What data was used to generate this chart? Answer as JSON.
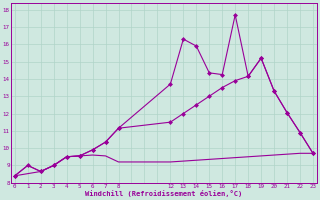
{
  "background_color": "#cfe8e0",
  "grid_color": "#b0d4c8",
  "line_color": "#990099",
  "xlabel": "Windchill (Refroidissement éolien,°C)",
  "ylim": [
    8,
    18.4
  ],
  "xlim": [
    -0.3,
    23.3
  ],
  "yticks": [
    8,
    9,
    10,
    11,
    12,
    13,
    14,
    15,
    16,
    17,
    18
  ],
  "xticks": [
    0,
    1,
    2,
    3,
    4,
    5,
    6,
    7,
    8,
    12,
    13,
    14,
    15,
    16,
    17,
    18,
    19,
    20,
    21,
    22,
    23
  ],
  "s1_x": [
    0,
    1,
    2,
    3,
    4,
    5,
    6,
    7,
    8,
    12,
    13,
    14,
    15,
    16,
    17,
    18,
    19,
    20,
    21,
    22,
    23
  ],
  "s1_y": [
    8.4,
    9.0,
    8.65,
    9.0,
    9.5,
    9.55,
    9.6,
    9.55,
    9.2,
    9.2,
    9.25,
    9.3,
    9.35,
    9.4,
    9.45,
    9.5,
    9.55,
    9.6,
    9.65,
    9.7,
    9.7
  ],
  "s2_x": [
    0,
    1,
    2,
    3,
    4,
    5,
    6,
    7,
    8,
    12,
    13,
    14,
    15,
    16,
    17,
    18,
    19,
    20,
    21,
    22,
    23
  ],
  "s2_y": [
    8.4,
    9.0,
    8.65,
    9.0,
    9.5,
    9.55,
    9.9,
    10.35,
    11.15,
    13.7,
    16.3,
    15.9,
    14.35,
    14.25,
    17.7,
    14.15,
    15.2,
    13.3,
    12.05,
    10.9,
    9.7
  ],
  "s3_x": [
    0,
    2,
    3,
    4,
    5,
    6,
    7,
    8,
    12,
    13,
    14,
    15,
    16,
    17,
    18,
    19,
    20,
    21,
    22,
    23
  ],
  "s3_y": [
    8.4,
    8.65,
    9.0,
    9.5,
    9.55,
    9.9,
    10.35,
    11.15,
    11.5,
    12.0,
    12.5,
    13.0,
    13.5,
    13.9,
    14.15,
    15.2,
    13.3,
    12.05,
    10.9,
    9.7
  ],
  "markersize": 2.5,
  "linewidth": 0.8
}
